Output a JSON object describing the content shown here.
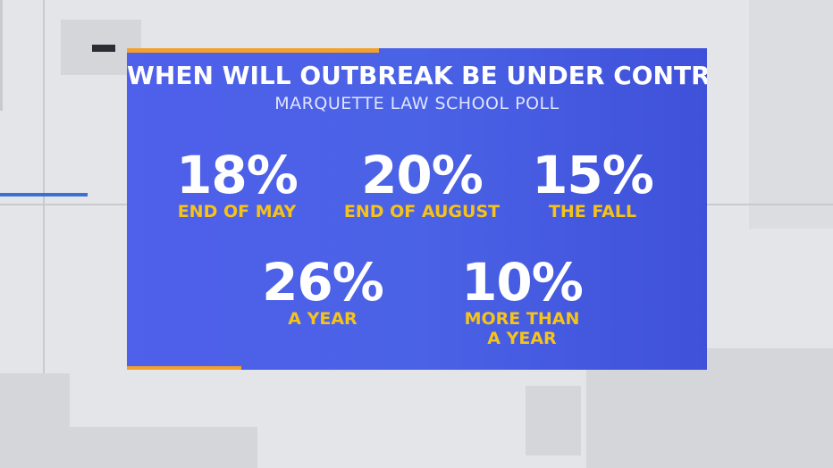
{
  "title": "WHEN WILL OUTBREAK BE UNDER CONTROL?",
  "subtitle": "MARQUETTE LAW SCHOOL POLL",
  "colors": {
    "card_blue": "#4a62e6",
    "accent_orange": "#f4a12a",
    "label_yellow": "#f6c318",
    "text_white": "#ffffff"
  },
  "stats": [
    {
      "percent": "18%",
      "label": "END OF MAY"
    },
    {
      "percent": "20%",
      "label": "END OF AUGUST"
    },
    {
      "percent": "15%",
      "label": "THE FALL"
    },
    {
      "percent": "26%",
      "label": "A YEAR"
    },
    {
      "percent": "10%",
      "label_line1": "MORE THAN",
      "label_line2": "A YEAR"
    }
  ]
}
